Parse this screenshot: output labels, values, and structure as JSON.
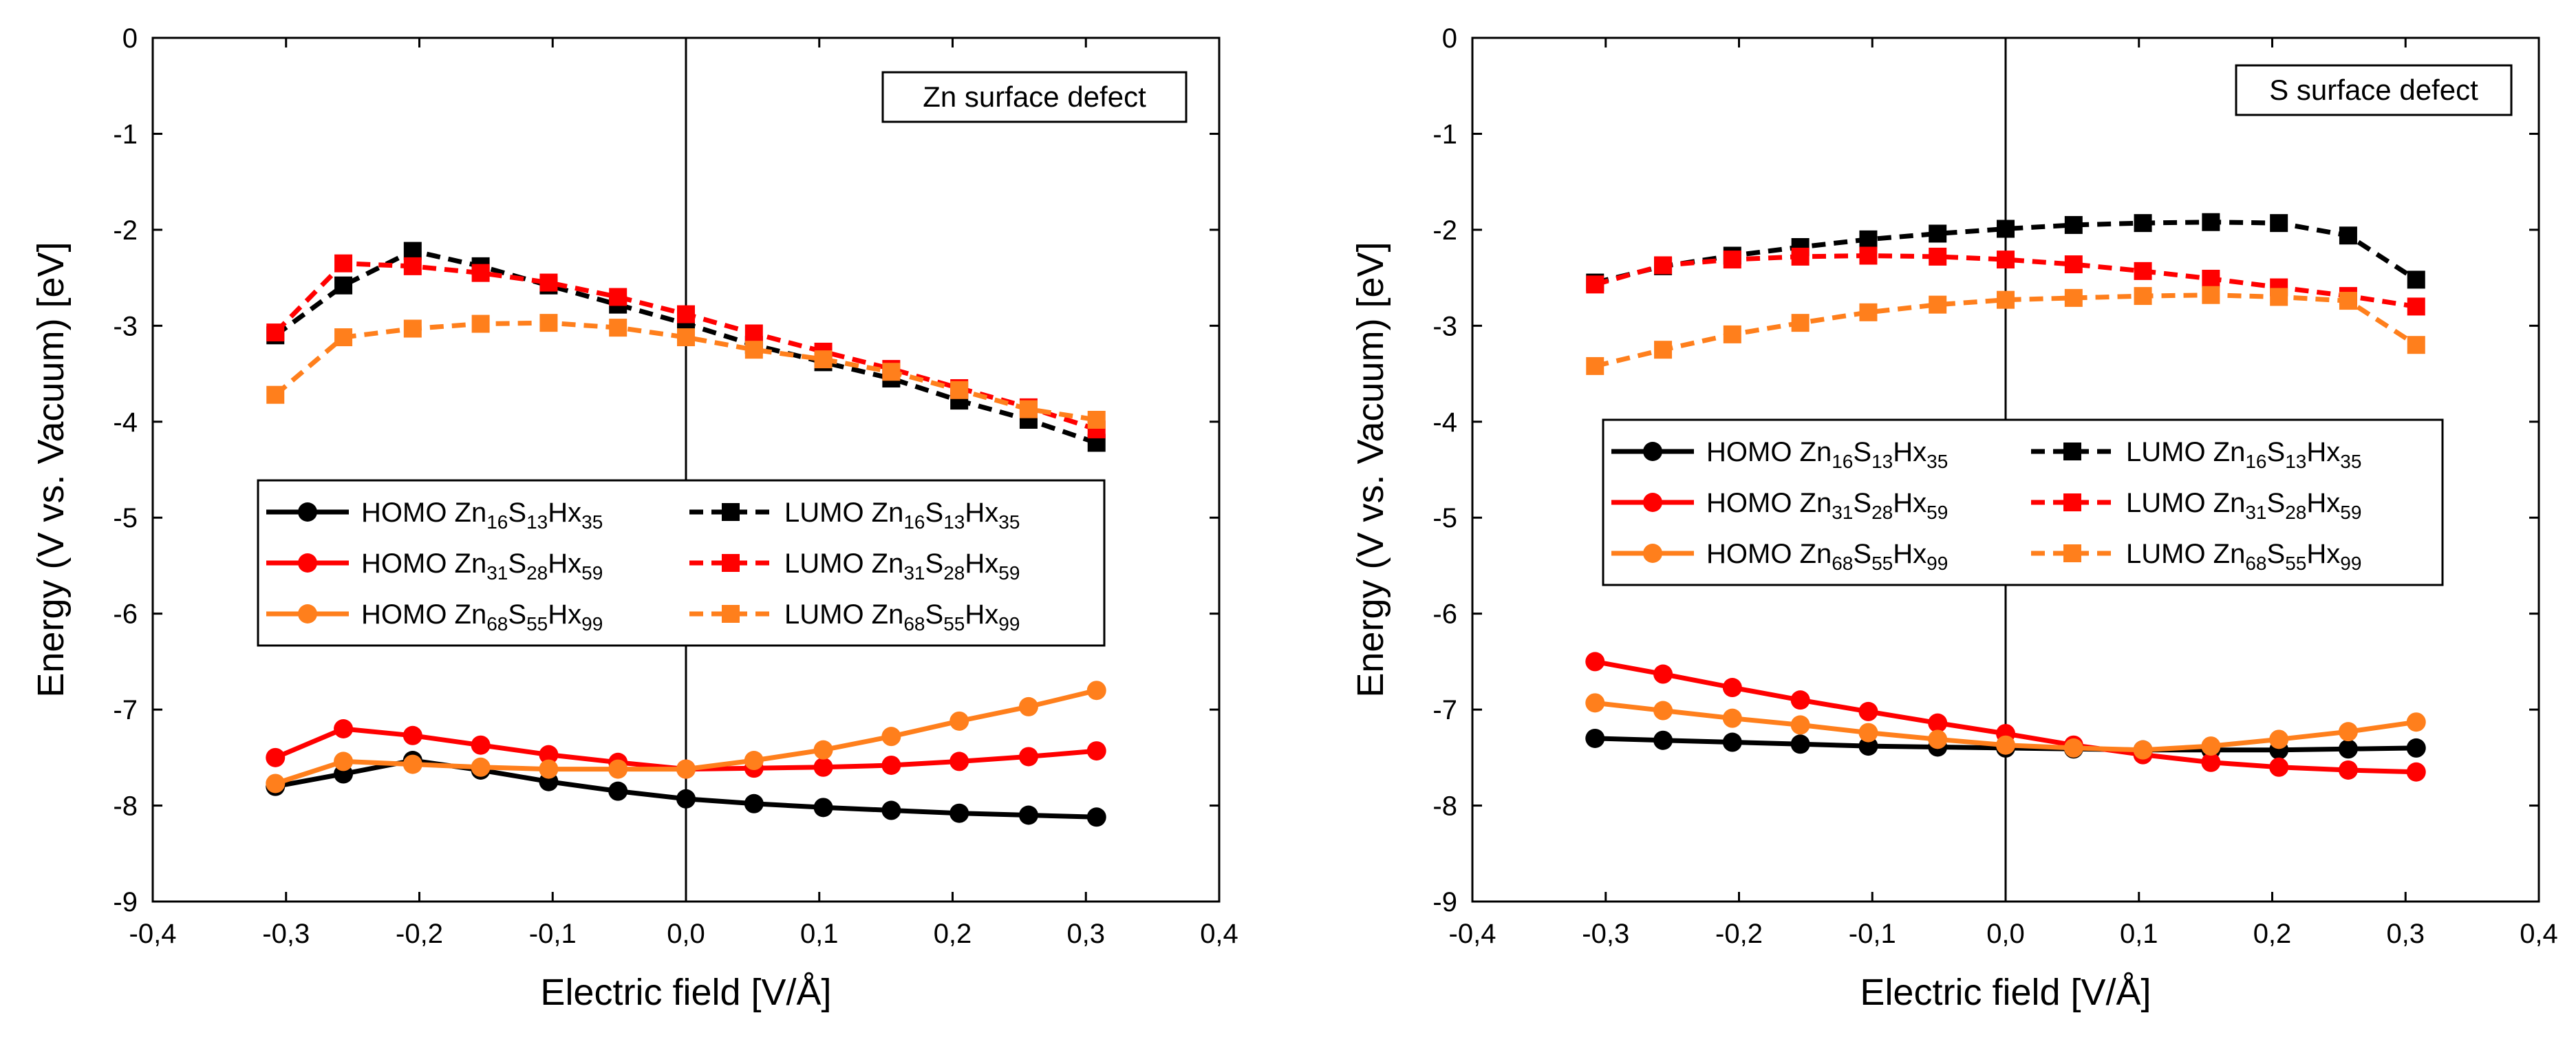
{
  "chart_data": [
    {
      "type": "line",
      "panel_label": "Zn surface defect",
      "xlabel": "Electric field [V/Å]",
      "ylabel": "Energy (V vs. Vacuum) [eV]",
      "xlim": [
        -0.4,
        0.4
      ],
      "ylim": [
        -9,
        0
      ],
      "x_ticks": [
        "-0,4",
        "-0,3",
        "-0,2",
        "-0,1",
        "0,0",
        "0,1",
        "0,2",
        "0,3",
        "0,4"
      ],
      "y_ticks": [
        "0",
        "-1",
        "-2",
        "-3",
        "-4",
        "-5",
        "-6",
        "-7",
        "-8",
        "-9"
      ],
      "reference_line_x": 0.0,
      "x": [
        -0.308,
        -0.257,
        -0.205,
        -0.154,
        -0.103,
        -0.051,
        0.0,
        0.051,
        0.103,
        0.154,
        0.205,
        0.257,
        0.308
      ],
      "series": [
        {
          "name": "HOMO Zn16S13Hx35",
          "label_parts": [
            [
              "HOMO Zn",
              ""
            ],
            [
              "16",
              "sub"
            ],
            [
              "S",
              ""
            ],
            [
              "13",
              "sub"
            ],
            [
              "Hx",
              ""
            ],
            [
              "35",
              "sub"
            ]
          ],
          "color": "#000000",
          "marker": "circle",
          "dash": false,
          "values": [
            -7.8,
            -7.67,
            -7.53,
            -7.63,
            -7.75,
            -7.85,
            -7.93,
            -7.98,
            -8.02,
            -8.05,
            -8.08,
            -8.1,
            -8.12
          ]
        },
        {
          "name": "LUMO Zn16S13Hx35",
          "label_parts": [
            [
              "LUMO Zn",
              ""
            ],
            [
              "16",
              "sub"
            ],
            [
              "S",
              ""
            ],
            [
              "13",
              "sub"
            ],
            [
              "Hx",
              ""
            ],
            [
              "35",
              "sub"
            ]
          ],
          "color": "#000000",
          "marker": "square",
          "dash": true,
          "values": [
            -3.1,
            -2.58,
            -2.22,
            -2.38,
            -2.58,
            -2.78,
            -2.98,
            -3.2,
            -3.38,
            -3.55,
            -3.78,
            -3.98,
            -4.22
          ]
        },
        {
          "name": "HOMO Zn31S28Hx59",
          "label_parts": [
            [
              "HOMO Zn",
              ""
            ],
            [
              "31",
              "sub"
            ],
            [
              "S",
              ""
            ],
            [
              "28",
              "sub"
            ],
            [
              "Hx",
              ""
            ],
            [
              "59",
              "sub"
            ]
          ],
          "color": "#ff0000",
          "marker": "circle",
          "dash": false,
          "values": [
            -7.5,
            -7.2,
            -7.27,
            -7.37,
            -7.47,
            -7.55,
            -7.62,
            -7.61,
            -7.6,
            -7.58,
            -7.54,
            -7.49,
            -7.43
          ]
        },
        {
          "name": "LUMO Zn31S28Hx59",
          "label_parts": [
            [
              "LUMO Zn",
              ""
            ],
            [
              "31",
              "sub"
            ],
            [
              "S",
              ""
            ],
            [
              "28",
              "sub"
            ],
            [
              "Hx",
              ""
            ],
            [
              "59",
              "sub"
            ]
          ],
          "color": "#ff0000",
          "marker": "square",
          "dash": true,
          "values": [
            -3.07,
            -2.35,
            -2.38,
            -2.45,
            -2.55,
            -2.7,
            -2.88,
            -3.08,
            -3.27,
            -3.45,
            -3.65,
            -3.85,
            -4.08
          ]
        },
        {
          "name": "HOMO Zn68S55Hx99",
          "label_parts": [
            [
              "HOMO Zn",
              ""
            ],
            [
              "68",
              "sub"
            ],
            [
              "S",
              ""
            ],
            [
              "55",
              "sub"
            ],
            [
              "Hx",
              ""
            ],
            [
              "99",
              "sub"
            ]
          ],
          "color": "#ff7f1c",
          "marker": "circle",
          "dash": false,
          "values": [
            -7.77,
            -7.54,
            -7.57,
            -7.6,
            -7.62,
            -7.62,
            -7.62,
            -7.53,
            -7.42,
            -7.28,
            -7.12,
            -6.97,
            -6.8
          ]
        },
        {
          "name": "LUMO Zn68S55Hx99",
          "label_parts": [
            [
              "LUMO Zn",
              ""
            ],
            [
              "68",
              "sub"
            ],
            [
              "S",
              ""
            ],
            [
              "55",
              "sub"
            ],
            [
              "Hx",
              ""
            ],
            [
              "99",
              "sub"
            ]
          ],
          "color": "#ff7f1c",
          "marker": "square",
          "dash": true,
          "values": [
            -3.72,
            -3.12,
            -3.03,
            -2.98,
            -2.97,
            -3.02,
            -3.12,
            -3.25,
            -3.35,
            -3.48,
            -3.67,
            -3.87,
            -3.98
          ]
        }
      ]
    },
    {
      "type": "line",
      "panel_label": "S surface defect",
      "xlabel": "Electric field [V/Å]",
      "ylabel": "Energy (V vs. Vacuum) [eV]",
      "xlim": [
        -0.4,
        0.4
      ],
      "ylim": [
        -9,
        0
      ],
      "x_ticks": [
        "-0,4",
        "-0,3",
        "-0,2",
        "-0,1",
        "0,0",
        "0,1",
        "0,2",
        "0,3",
        "0,4"
      ],
      "y_ticks": [
        "0",
        "-1",
        "-2",
        "-3",
        "-4",
        "-5",
        "-6",
        "-7",
        "-8",
        "-9"
      ],
      "reference_line_x": 0.0,
      "x": [
        -0.308,
        -0.257,
        -0.205,
        -0.154,
        -0.103,
        -0.051,
        0.0,
        0.051,
        0.103,
        0.154,
        0.205,
        0.257,
        0.308
      ],
      "series": [
        {
          "name": "HOMO Zn16S13Hx35",
          "label_parts": [
            [
              "HOMO Zn",
              ""
            ],
            [
              "16",
              "sub"
            ],
            [
              "S",
              ""
            ],
            [
              "13",
              "sub"
            ],
            [
              "Hx",
              ""
            ],
            [
              "35",
              "sub"
            ]
          ],
          "color": "#000000",
          "marker": "circle",
          "dash": false,
          "values": [
            -7.3,
            -7.32,
            -7.34,
            -7.36,
            -7.38,
            -7.39,
            -7.4,
            -7.41,
            -7.42,
            -7.42,
            -7.42,
            -7.41,
            -7.4
          ]
        },
        {
          "name": "LUMO Zn16S13Hx35",
          "label_parts": [
            [
              "LUMO Zn",
              ""
            ],
            [
              "16",
              "sub"
            ],
            [
              "S",
              ""
            ],
            [
              "13",
              "sub"
            ],
            [
              "Hx",
              ""
            ],
            [
              "35",
              "sub"
            ]
          ],
          "color": "#000000",
          "marker": "square",
          "dash": true,
          "values": [
            -2.55,
            -2.38,
            -2.27,
            -2.18,
            -2.1,
            -2.04,
            -1.99,
            -1.95,
            -1.93,
            -1.92,
            -1.93,
            -2.06,
            -2.52
          ]
        },
        {
          "name": "HOMO Zn31S28Hx59",
          "label_parts": [
            [
              "HOMO Zn",
              ""
            ],
            [
              "31",
              "sub"
            ],
            [
              "S",
              ""
            ],
            [
              "28",
              "sub"
            ],
            [
              "Hx",
              ""
            ],
            [
              "59",
              "sub"
            ]
          ],
          "color": "#ff0000",
          "marker": "circle",
          "dash": false,
          "values": [
            -6.5,
            -6.63,
            -6.77,
            -6.9,
            -7.02,
            -7.14,
            -7.25,
            -7.37,
            -7.47,
            -7.55,
            -7.6,
            -7.63,
            -7.65
          ]
        },
        {
          "name": "LUMO Zn31S28Hx59",
          "label_parts": [
            [
              "LUMO Zn",
              ""
            ],
            [
              "31",
              "sub"
            ],
            [
              "S",
              ""
            ],
            [
              "28",
              "sub"
            ],
            [
              "Hx",
              ""
            ],
            [
              "59",
              "sub"
            ]
          ],
          "color": "#ff0000",
          "marker": "square",
          "dash": true,
          "values": [
            -2.57,
            -2.37,
            -2.31,
            -2.28,
            -2.27,
            -2.28,
            -2.31,
            -2.36,
            -2.43,
            -2.51,
            -2.6,
            -2.69,
            -2.8
          ]
        },
        {
          "name": "HOMO Zn68S55Hx99",
          "label_parts": [
            [
              "HOMO Zn",
              ""
            ],
            [
              "68",
              "sub"
            ],
            [
              "S",
              ""
            ],
            [
              "55",
              "sub"
            ],
            [
              "Hx",
              ""
            ],
            [
              "99",
              "sub"
            ]
          ],
          "color": "#ff7f1c",
          "marker": "circle",
          "dash": false,
          "values": [
            -6.93,
            -7.01,
            -7.09,
            -7.16,
            -7.24,
            -7.31,
            -7.37,
            -7.4,
            -7.42,
            -7.38,
            -7.31,
            -7.23,
            -7.13
          ]
        },
        {
          "name": "LUMO Zn68S55Hx99",
          "label_parts": [
            [
              "LUMO Zn",
              ""
            ],
            [
              "68",
              "sub"
            ],
            [
              "S",
              ""
            ],
            [
              "55",
              "sub"
            ],
            [
              "Hx",
              ""
            ],
            [
              "99",
              "sub"
            ]
          ],
          "color": "#ff7f1c",
          "marker": "square",
          "dash": true,
          "values": [
            -3.42,
            -3.25,
            -3.09,
            -2.97,
            -2.86,
            -2.78,
            -2.73,
            -2.71,
            -2.69,
            -2.68,
            -2.7,
            -2.74,
            -3.2
          ]
        }
      ]
    }
  ]
}
